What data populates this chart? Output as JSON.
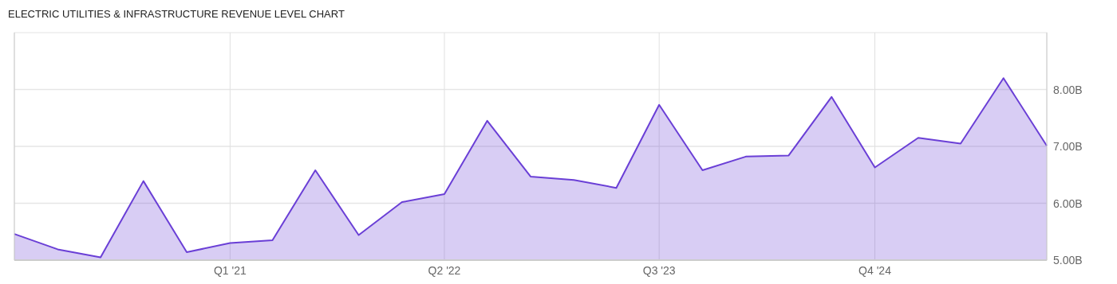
{
  "chart_data": {
    "type": "area",
    "title": "ELECTRIC UTILITIES & INFRASTRUCTURE REVENUE LEVEL CHART",
    "x": [
      "2019-10",
      "2020-01",
      "2020-04",
      "2020-07",
      "2020-10",
      "2021-01",
      "2021-04",
      "2021-07",
      "2021-10",
      "2022-01",
      "2022-04",
      "2022-07",
      "2022-10",
      "2023-01",
      "2023-04",
      "2023-07",
      "2023-10",
      "2024-01",
      "2024-04",
      "2024-07",
      "2024-10",
      "2025-01",
      "2025-04",
      "2025-07",
      "2025-10"
    ],
    "series": [
      {
        "color": "#6a3fd6",
        "values": [
          5.46,
          5.19,
          5.05,
          6.39,
          5.14,
          5.3,
          5.35,
          6.58,
          5.44,
          6.02,
          6.16,
          7.45,
          6.47,
          6.41,
          6.27,
          7.73,
          6.58,
          6.82,
          6.84,
          7.87,
          6.63,
          7.15,
          7.05,
          8.2,
          7.01
        ]
      }
    ],
    "xlim": [
      "2019-10",
      "2025-10"
    ],
    "xticks": [
      {
        "value": "2021-01",
        "label": "Q1 '21"
      },
      {
        "value": "2022-04",
        "label": "Q2 '22"
      },
      {
        "value": "2023-07",
        "label": "Q3 '23"
      },
      {
        "value": "2024-10",
        "label": "Q4 '24"
      }
    ],
    "ylim": [
      5,
      9
    ],
    "yticks": [
      {
        "value": 5,
        "label": "5.00B"
      },
      {
        "value": 6,
        "label": "6.00B"
      },
      {
        "value": 7,
        "label": "7.00B"
      },
      {
        "value": 8,
        "label": "8.00B"
      }
    ],
    "grid": true
  }
}
